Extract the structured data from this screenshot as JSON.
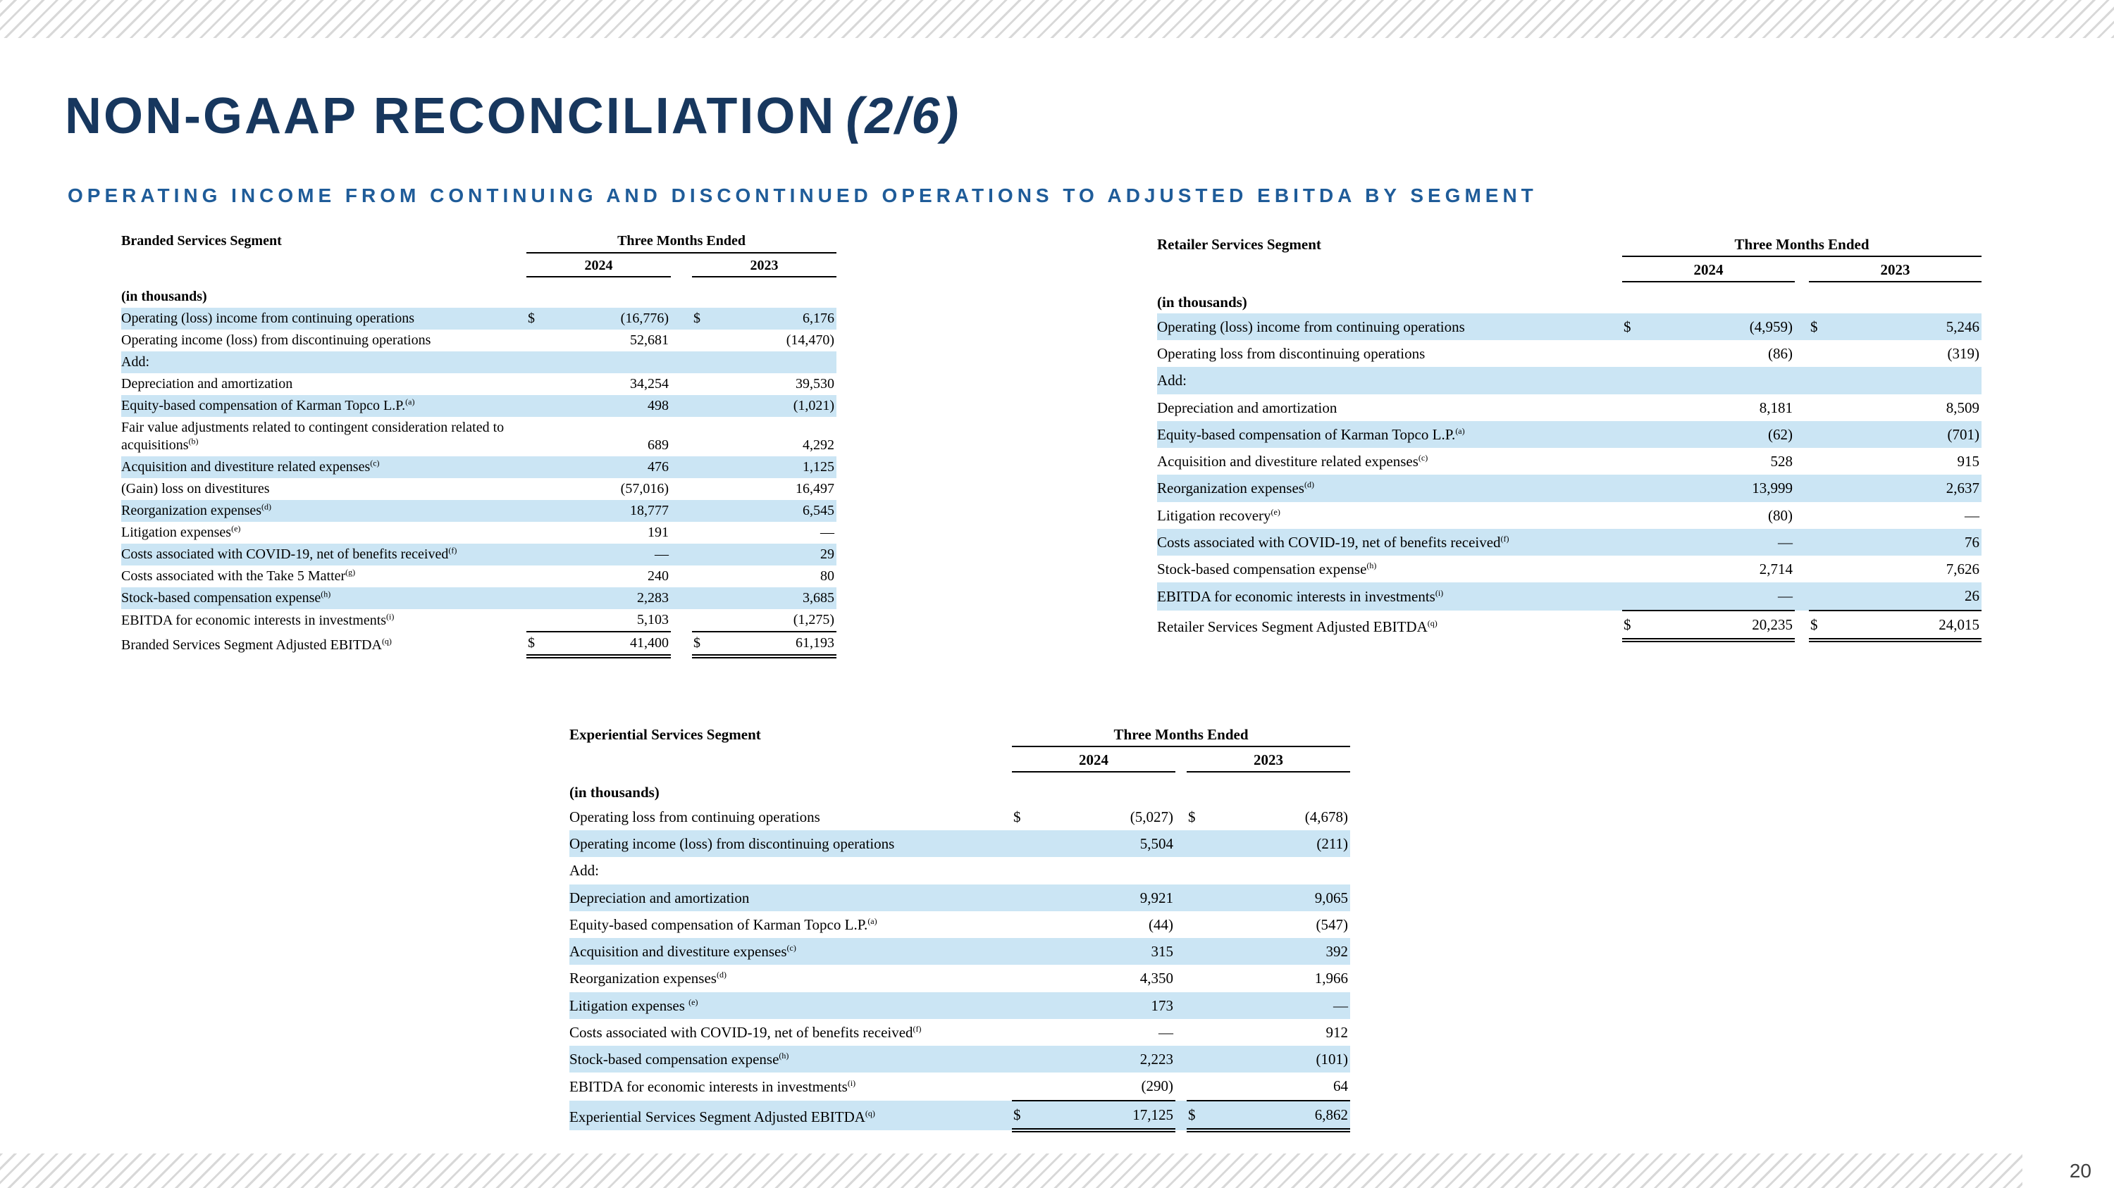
{
  "page": {
    "title_main": "NON-GAAP RECONCILIATION",
    "title_suffix": "(2/6)",
    "subtitle": "OPERATING INCOME FROM CONTINUING AND DISCONTINUED OPERATIONS TO ADJUSTED EBITDA BY SEGMENT",
    "page_number": "20"
  },
  "colors": {
    "title_navy": "#17375e",
    "subtitle_blue": "#1f5c99",
    "row_highlight": "#cbe5f4",
    "stripe_gray": "#d8d8d8",
    "table_text": "#000000",
    "page_number_color": "#404040"
  },
  "tables": [
    {
      "segment": "Branded Services Segment",
      "period_header": "Three Months Ended",
      "years": [
        "2024",
        "2023"
      ],
      "units": "(in thousands)",
      "rows": [
        {
          "label": "Operating (loss) income from continuing operations",
          "d24": "$",
          "v24": "(16,776)",
          "d23": "$",
          "v23": "6,176",
          "hl": true
        },
        {
          "label": "Operating income (loss) from discontinuing operations",
          "v24": "52,681",
          "v23": "(14,470)"
        },
        {
          "label": "Add:",
          "hl": true
        },
        {
          "label": "Depreciation and amortization",
          "v24": "34,254",
          "v23": "39,530"
        },
        {
          "label": "Equity-based compensation of Karman Topco L.P.",
          "sup": "(a)",
          "v24": "498",
          "v23": "(1,021)",
          "hl": true
        },
        {
          "label": "Fair value adjustments related to contingent consideration related to acquisitions",
          "sup": "(b)",
          "v24": "689",
          "v23": "4,292"
        },
        {
          "label": "Acquisition and divestiture related expenses",
          "sup": "(c)",
          "v24": "476",
          "v23": "1,125",
          "hl": true
        },
        {
          "label": "(Gain) loss on divestitures",
          "v24": "(57,016)",
          "v23": "16,497"
        },
        {
          "label": "Reorganization expenses",
          "sup": "(d)",
          "v24": "18,777",
          "v23": "6,545",
          "hl": true
        },
        {
          "label": "Litigation expenses",
          "sup": "(e)",
          "v24": "191",
          "v23": "—"
        },
        {
          "label": "Costs associated with COVID-19, net of benefits received",
          "sup": "(f)",
          "v24": "—",
          "v23": "29",
          "hl": true
        },
        {
          "label": "Costs associated with the Take 5 Matter",
          "sup": "(g)",
          "v24": "240",
          "v23": "80"
        },
        {
          "label": "Stock-based compensation expense",
          "sup": "(h)",
          "v24": "2,283",
          "v23": "3,685",
          "hl": true
        },
        {
          "label": "EBITDA for economic interests in investments",
          "sup": "(i)",
          "v24": "5,103",
          "v23": "(1,275)"
        },
        {
          "label": "Branded Services Segment Adjusted EBITDA",
          "sup": "(q)",
          "d24": "$",
          "v24": "41,400",
          "d23": "$",
          "v23": "61,193",
          "total": true
        }
      ]
    },
    {
      "segment": "Retailer Services Segment",
      "period_header": "Three Months Ended",
      "years": [
        "2024",
        "2023"
      ],
      "units": "(in thousands)",
      "rows": [
        {
          "label": "Operating (loss) income from continuing operations",
          "d24": "$",
          "v24": "(4,959)",
          "d23": "$",
          "v23": "5,246",
          "hl": true
        },
        {
          "label": "Operating loss from discontinuing operations",
          "v24": "(86)",
          "v23": "(319)"
        },
        {
          "label": "Add:",
          "hl": true
        },
        {
          "label": "Depreciation and amortization",
          "v24": "8,181",
          "v23": "8,509"
        },
        {
          "label": "Equity-based compensation of Karman Topco L.P.",
          "sup": "(a)",
          "v24": "(62)",
          "v23": "(701)",
          "hl": true
        },
        {
          "label": "Acquisition and divestiture related expenses",
          "sup": "(c)",
          "v24": "528",
          "v23": "915"
        },
        {
          "label": "Reorganization expenses",
          "sup": "(d)",
          "v24": "13,999",
          "v23": "2,637",
          "hl": true
        },
        {
          "label": "Litigation recovery",
          "sup": "(e)",
          "v24": "(80)",
          "v23": "—"
        },
        {
          "label": "Costs associated with COVID-19, net of benefits received",
          "sup": "(f)",
          "v24": "—",
          "v23": "76",
          "hl": true
        },
        {
          "label": "Stock-based compensation expense",
          "sup": "(h)",
          "v24": "2,714",
          "v23": "7,626"
        },
        {
          "label": "EBITDA for economic interests in investments",
          "sup": "(i)",
          "v24": "—",
          "v23": "26",
          "hl": true
        },
        {
          "label": "Retailer Services Segment Adjusted EBITDA",
          "sup": "(q)",
          "d24": "$",
          "v24": "20,235",
          "d23": "$",
          "v23": "24,015",
          "total": true
        }
      ]
    },
    {
      "segment": "Experiential Services Segment",
      "period_header": "Three Months Ended",
      "years": [
        "2024",
        "2023"
      ],
      "units": "(in thousands)",
      "rows": [
        {
          "label": "Operating loss from continuing operations",
          "d24": "$",
          "v24": "(5,027)",
          "d23": "$",
          "v23": "(4,678)"
        },
        {
          "label": "Operating income (loss) from discontinuing operations",
          "v24": "5,504",
          "v23": "(211)",
          "hl": true
        },
        {
          "label": "Add:"
        },
        {
          "label": "Depreciation and amortization",
          "v24": "9,921",
          "v23": "9,065",
          "hl": true
        },
        {
          "label": "Equity-based compensation of Karman Topco L.P.",
          "sup": "(a)",
          "v24": "(44)",
          "v23": "(547)"
        },
        {
          "label": "Acquisition and divestiture expenses",
          "sup": "(c)",
          "v24": "315",
          "v23": "392",
          "hl": true
        },
        {
          "label": "Reorganization expenses",
          "sup": "(d)",
          "v24": "4,350",
          "v23": "1,966"
        },
        {
          "label": "Litigation expenses ",
          "sup": "(e)",
          "v24": "173",
          "v23": "—",
          "hl": true
        },
        {
          "label": "Costs associated with COVID-19, net of benefits received",
          "sup": "(f)",
          "v24": "—",
          "v23": "912"
        },
        {
          "label": "Stock-based compensation expense",
          "sup": "(h)",
          "v24": "2,223",
          "v23": "(101)",
          "hl": true
        },
        {
          "label": "EBITDA for economic interests in investments",
          "sup": "(i)",
          "v24": "(290)",
          "v23": "64"
        },
        {
          "label": "Experiential Services Segment Adjusted EBITDA",
          "sup": "(q)",
          "d24": "$",
          "v24": "17,125",
          "d23": "$",
          "v23": "6,862",
          "total": true,
          "hl": true
        }
      ]
    }
  ]
}
